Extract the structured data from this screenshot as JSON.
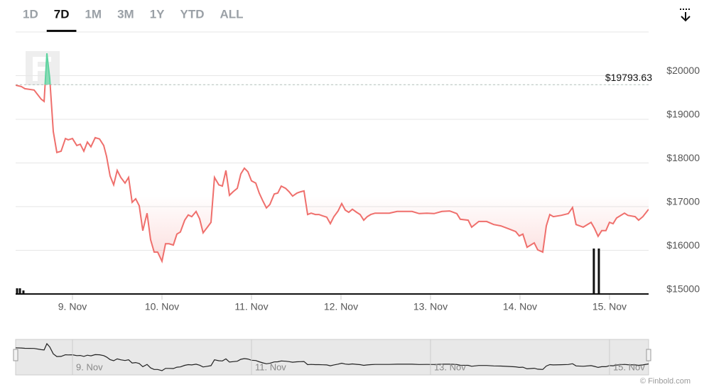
{
  "chart_data": {
    "type": "line",
    "range_buttons": [
      "1D",
      "7D",
      "1M",
      "3M",
      "1Y",
      "YTD",
      "ALL"
    ],
    "selected_range": 1,
    "credit": "© Finbold.com",
    "reference": {
      "value": 19793.63,
      "label": "$19793.63"
    },
    "xlim": [
      8.365,
      15.437
    ],
    "xticks": [
      {
        "value": 9,
        "label": "9. Nov"
      },
      {
        "value": 10,
        "label": "10. Nov"
      },
      {
        "value": 11,
        "label": "11. Nov"
      },
      {
        "value": 12,
        "label": "12. Nov"
      },
      {
        "value": 13,
        "label": "13. Nov"
      },
      {
        "value": 14,
        "label": "14. Nov"
      },
      {
        "value": 15,
        "label": "15. Nov"
      }
    ],
    "ylim": [
      15000,
      21000
    ],
    "yticks": [
      {
        "value": 15000,
        "label": "$15000"
      },
      {
        "value": 16000,
        "label": "$16000"
      },
      {
        "value": 17000,
        "label": "$17000"
      },
      {
        "value": 18000,
        "label": "$18000"
      },
      {
        "value": 19000,
        "label": "$19000"
      },
      {
        "value": 20000,
        "label": "$20000"
      }
    ],
    "grid": true,
    "x": [
      8.365,
      8.429,
      8.468,
      8.571,
      8.651,
      8.683,
      8.714,
      8.746,
      8.786,
      8.825,
      8.873,
      8.921,
      8.952,
      9.0,
      9.048,
      9.087,
      9.127,
      9.167,
      9.206,
      9.254,
      9.302,
      9.349,
      9.381,
      9.421,
      9.46,
      9.5,
      9.54,
      9.587,
      9.627,
      9.667,
      9.706,
      9.746,
      9.786,
      9.833,
      9.873,
      9.913,
      9.952,
      10.0,
      10.04,
      10.079,
      10.127,
      10.167,
      10.206,
      10.254,
      10.294,
      10.333,
      10.381,
      10.421,
      10.46,
      10.508,
      10.548,
      10.587,
      10.635,
      10.675,
      10.714,
      10.754,
      10.794,
      10.841,
      10.881,
      10.921,
      10.96,
      11.0,
      11.048,
      11.087,
      11.127,
      11.167,
      11.206,
      11.254,
      11.294,
      11.333,
      11.381,
      11.421,
      11.46,
      11.508,
      11.548,
      11.587,
      11.627,
      11.667,
      11.714,
      11.754,
      11.794,
      11.841,
      11.881,
      11.921,
      11.968,
      12.008,
      12.048,
      12.087,
      12.127,
      12.175,
      12.214,
      12.254,
      12.294,
      12.333,
      12.381,
      12.46,
      12.54,
      12.627,
      12.706,
      12.794,
      12.873,
      12.96,
      13.04,
      13.127,
      13.214,
      13.294,
      13.333,
      13.421,
      13.46,
      13.54,
      13.627,
      13.706,
      13.786,
      13.865,
      13.952,
      13.992,
      14.032,
      14.079,
      14.159,
      14.198,
      14.254,
      14.294,
      14.333,
      14.373,
      14.46,
      14.54,
      14.587,
      14.627,
      14.706,
      14.794,
      14.833,
      14.873,
      14.913,
      14.96,
      15.0,
      15.04,
      15.079,
      15.167,
      15.206,
      15.286,
      15.325,
      15.373,
      15.437
    ],
    "series": [
      {
        "color": "#ef6f6c",
        "up_color": "#5fd3a0",
        "values": [
          19780,
          19750,
          19700,
          19670,
          19460,
          19410,
          20510,
          19940,
          18720,
          18240,
          18270,
          18560,
          18530,
          18560,
          18400,
          18430,
          18270,
          18480,
          18370,
          18580,
          18550,
          18400,
          18150,
          17700,
          17500,
          17830,
          17670,
          17540,
          17670,
          17100,
          17180,
          17020,
          16450,
          16850,
          16240,
          15960,
          15960,
          15750,
          16150,
          16150,
          16120,
          16370,
          16420,
          16690,
          16810,
          16770,
          16890,
          16720,
          16400,
          16530,
          16640,
          17670,
          17500,
          17470,
          17830,
          17260,
          17340,
          17420,
          17750,
          17880,
          17800,
          17590,
          17540,
          17310,
          17130,
          16970,
          17050,
          17290,
          17310,
          17470,
          17420,
          17340,
          17240,
          17310,
          17340,
          17360,
          16820,
          16850,
          16820,
          16820,
          16790,
          16760,
          16610,
          16770,
          16900,
          17070,
          16920,
          16870,
          16940,
          16870,
          16820,
          16690,
          16770,
          16820,
          16850,
          16850,
          16850,
          16890,
          16890,
          16890,
          16840,
          16850,
          16840,
          16890,
          16900,
          16840,
          16710,
          16690,
          16530,
          16660,
          16660,
          16590,
          16560,
          16500,
          16430,
          16330,
          16370,
          16070,
          16170,
          16010,
          15960,
          16560,
          16820,
          16770,
          16800,
          16840,
          16980,
          16590,
          16530,
          16640,
          16500,
          16320,
          16450,
          16450,
          16640,
          16610,
          16740,
          16850,
          16800,
          16770,
          16690,
          16770,
          16940
        ]
      }
    ],
    "volume": {
      "x": [
        8.381,
        8.413,
        8.452,
        14.825,
        14.881
      ],
      "values": [
        8,
        8,
        5,
        64,
        64
      ],
      "color": "#111111"
    },
    "navigator": {
      "xticks": [
        {
          "value": 9,
          "label": "9. Nov"
        },
        {
          "value": 11,
          "label": "11. Nov"
        },
        {
          "value": 13,
          "label": "13. Nov"
        },
        {
          "value": 15,
          "label": "15. Nov"
        }
      ]
    }
  }
}
